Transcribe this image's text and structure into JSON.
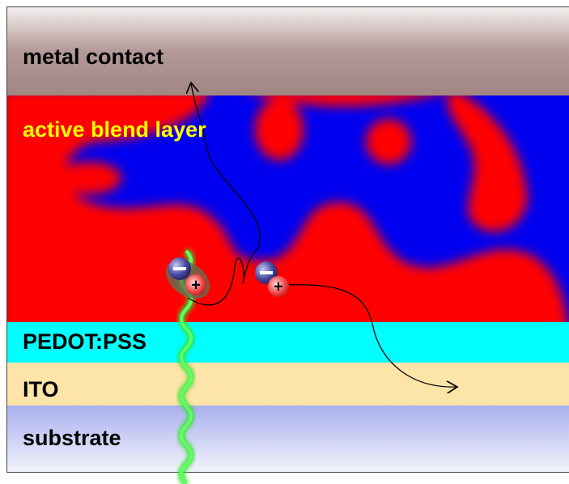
{
  "layers": [
    {
      "label": "metal contact"
    },
    {
      "label": "active blend layer"
    },
    {
      "label": "PEDOT:PSS"
    },
    {
      "label": "ITO"
    },
    {
      "label": "substrate"
    }
  ],
  "charges": [
    {
      "label": "+"
    },
    {
      "label": "+"
    }
  ]
}
